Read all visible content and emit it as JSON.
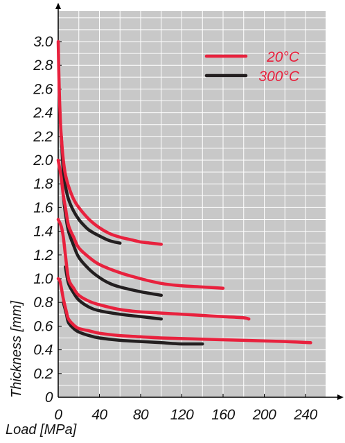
{
  "chart_data": {
    "type": "line",
    "title": "",
    "xlabel": "Load [MPa]",
    "ylabel": "Thickness [mm]",
    "xlim": [
      0,
      240
    ],
    "ylim": [
      0,
      3.0
    ],
    "x_ticks": [
      0,
      40,
      80,
      120,
      160,
      200,
      240
    ],
    "x_tick_labels": [
      "0",
      "40",
      "80",
      "120",
      "160",
      "200",
      "240"
    ],
    "y_ticks": [
      0,
      0.2,
      0.4,
      0.6,
      0.8,
      1.0,
      1.2,
      1.4,
      1.6,
      1.8,
      2.0,
      2.2,
      2.4,
      2.6,
      2.8,
      3.0
    ],
    "y_tick_labels": [
      "0",
      "0.2",
      "0.4",
      "0.6",
      "0.8",
      "1.0",
      "1.2",
      "1.4",
      "1.6",
      "1.8",
      "2.0",
      "2.2",
      "2.4",
      "2.6",
      "2.8",
      "3.0"
    ],
    "grid": true,
    "background_color": "#c8c8c8",
    "legend": {
      "placement": "top-right",
      "entries": [
        {
          "label": "20°C",
          "color": "#e8213d"
        },
        {
          "label": "300°C",
          "color": "#231f20"
        }
      ]
    },
    "series": [
      {
        "temperature": "20°C",
        "color": "#e8213d",
        "points": [
          [
            0,
            3.0
          ],
          [
            1,
            2.6
          ],
          [
            2,
            2.35
          ],
          [
            3,
            2.2
          ],
          [
            5,
            2.0
          ],
          [
            7,
            1.88
          ],
          [
            10,
            1.78
          ],
          [
            15,
            1.67
          ],
          [
            20,
            1.6
          ],
          [
            30,
            1.5
          ],
          [
            40,
            1.43
          ],
          [
            50,
            1.38
          ],
          [
            60,
            1.35
          ],
          [
            70,
            1.33
          ],
          [
            80,
            1.31
          ],
          [
            90,
            1.3
          ],
          [
            100,
            1.29
          ]
        ]
      },
      {
        "temperature": "300°C",
        "color": "#231f20",
        "points": [
          [
            3,
            2.2
          ],
          [
            5,
            1.9
          ],
          [
            7,
            1.78
          ],
          [
            10,
            1.67
          ],
          [
            15,
            1.57
          ],
          [
            20,
            1.5
          ],
          [
            25,
            1.45
          ],
          [
            30,
            1.41
          ],
          [
            40,
            1.36
          ],
          [
            50,
            1.32
          ],
          [
            60,
            1.3
          ]
        ]
      },
      {
        "temperature": "20°C",
        "color": "#e8213d",
        "points": [
          [
            0,
            2.0
          ],
          [
            3,
            1.85
          ],
          [
            5,
            1.7
          ],
          [
            7,
            1.6
          ],
          [
            10,
            1.45
          ],
          [
            15,
            1.35
          ],
          [
            20,
            1.26
          ],
          [
            30,
            1.18
          ],
          [
            40,
            1.12
          ],
          [
            60,
            1.05
          ],
          [
            80,
            1.0
          ],
          [
            100,
            0.96
          ],
          [
            120,
            0.94
          ],
          [
            140,
            0.93
          ],
          [
            160,
            0.92
          ]
        ]
      },
      {
        "temperature": "300°C",
        "color": "#231f20",
        "points": [
          [
            5,
            1.7
          ],
          [
            7,
            1.55
          ],
          [
            10,
            1.4
          ],
          [
            15,
            1.28
          ],
          [
            20,
            1.18
          ],
          [
            30,
            1.08
          ],
          [
            40,
            1.01
          ],
          [
            50,
            0.96
          ],
          [
            60,
            0.93
          ],
          [
            80,
            0.89
          ],
          [
            100,
            0.86
          ]
        ]
      },
      {
        "temperature": "20°C",
        "color": "#e8213d",
        "points": [
          [
            0,
            1.5
          ],
          [
            3,
            1.44
          ],
          [
            5,
            1.35
          ],
          [
            7,
            1.2
          ],
          [
            10,
            1.0
          ],
          [
            15,
            0.92
          ],
          [
            20,
            0.86
          ],
          [
            30,
            0.81
          ],
          [
            40,
            0.78
          ],
          [
            60,
            0.74
          ],
          [
            80,
            0.72
          ],
          [
            100,
            0.71
          ],
          [
            120,
            0.7
          ],
          [
            140,
            0.69
          ],
          [
            160,
            0.68
          ],
          [
            180,
            0.67
          ],
          [
            185,
            0.66
          ]
        ]
      },
      {
        "temperature": "300°C",
        "color": "#231f20",
        "points": [
          [
            7,
            1.1
          ],
          [
            10,
            0.96
          ],
          [
            15,
            0.88
          ],
          [
            20,
            0.82
          ],
          [
            30,
            0.76
          ],
          [
            40,
            0.73
          ],
          [
            60,
            0.7
          ],
          [
            80,
            0.68
          ],
          [
            100,
            0.66
          ]
        ]
      },
      {
        "temperature": "20°C",
        "color": "#e8213d",
        "points": [
          [
            0,
            1.0
          ],
          [
            2,
            0.97
          ],
          [
            5,
            0.83
          ],
          [
            8,
            0.72
          ],
          [
            10,
            0.66
          ],
          [
            15,
            0.61
          ],
          [
            20,
            0.58
          ],
          [
            30,
            0.56
          ],
          [
            40,
            0.54
          ],
          [
            60,
            0.52
          ],
          [
            80,
            0.51
          ],
          [
            100,
            0.5
          ],
          [
            140,
            0.49
          ],
          [
            180,
            0.48
          ],
          [
            220,
            0.47
          ],
          [
            245,
            0.46
          ]
        ]
      },
      {
        "temperature": "300°C",
        "color": "#231f20",
        "points": [
          [
            5,
            0.8
          ],
          [
            8,
            0.7
          ],
          [
            10,
            0.63
          ],
          [
            15,
            0.58
          ],
          [
            20,
            0.55
          ],
          [
            30,
            0.52
          ],
          [
            40,
            0.5
          ],
          [
            60,
            0.48
          ],
          [
            80,
            0.47
          ],
          [
            100,
            0.46
          ],
          [
            120,
            0.45
          ],
          [
            140,
            0.45
          ]
        ]
      }
    ]
  }
}
